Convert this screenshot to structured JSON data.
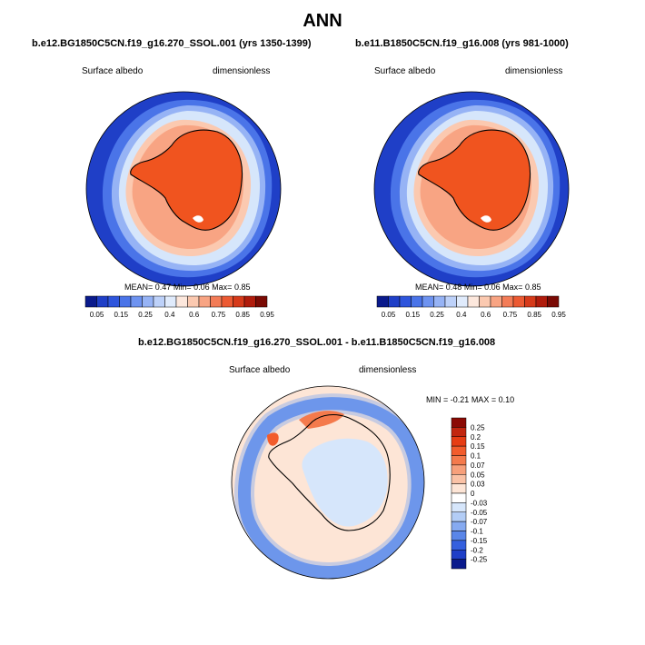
{
  "figure_title": "ANN",
  "colors": {
    "ocean_dark": "#1f3fc7",
    "ice_orange": "#f0541f",
    "coastline": "#000000"
  },
  "chart_data": [
    {
      "type": "heatmap",
      "projection": "south-polar stereographic",
      "title": "b.e12.BG1850C5CN.f19_g16.270_SSOL.001 (yrs 1350-1399)",
      "variable": "Surface albedo",
      "units": "dimensionless",
      "stats": {
        "mean_label": "MEAN=",
        "mean": "0.47",
        "min_label": "Min=",
        "min": "0.06",
        "max_label": "Max=",
        "max": "0.85"
      },
      "colorbar": {
        "orientation": "horizontal",
        "levels": [
          "0.05",
          "0.15",
          "0.25",
          "0.4",
          "0.6",
          "0.75",
          "0.85",
          "0.95"
        ],
        "colors": [
          "#0a1a8c",
          "#1f3fc7",
          "#2e55dc",
          "#4a74e8",
          "#6e93f0",
          "#96b3f5",
          "#bdd1f9",
          "#e0ebfc",
          "#fde8dd",
          "#fbc9b0",
          "#f8a483",
          "#f37c57",
          "#ec5a33",
          "#d63a1a",
          "#b01c0c",
          "#7a0a04"
        ]
      }
    },
    {
      "type": "heatmap",
      "projection": "south-polar stereographic",
      "title": "b.e11.B1850C5CN.f19_g16.008 (yrs 981-1000)",
      "variable": "Surface albedo",
      "units": "dimensionless",
      "stats": {
        "mean_label": "MEAN=",
        "mean": "0.48",
        "min_label": "Min=",
        "min": "0.06",
        "max_label": "Max=",
        "max": "0.85"
      },
      "colorbar": {
        "orientation": "horizontal",
        "levels": [
          "0.05",
          "0.15",
          "0.25",
          "0.4",
          "0.6",
          "0.75",
          "0.85",
          "0.95"
        ],
        "colors": [
          "#0a1a8c",
          "#1f3fc7",
          "#2e55dc",
          "#4a74e8",
          "#6e93f0",
          "#96b3f5",
          "#bdd1f9",
          "#e0ebfc",
          "#fde8dd",
          "#fbc9b0",
          "#f8a483",
          "#f37c57",
          "#ec5a33",
          "#d63a1a",
          "#b01c0c",
          "#7a0a04"
        ]
      }
    },
    {
      "type": "heatmap",
      "projection": "south-polar stereographic",
      "title": "b.e12.BG1850C5CN.f19_g16.270_SSOL.001 - b.e11.B1850C5CN.f19_g16.008",
      "variable": "Surface albedo",
      "units": "dimensionless",
      "stats": {
        "min_label": "MIN =",
        "min": "-0.21",
        "max_label": "MAX =",
        "max": "0.10"
      },
      "colorbar": {
        "orientation": "vertical",
        "levels": [
          "0.25",
          "0.2",
          "0.15",
          "0.1",
          "0.07",
          "0.05",
          "0.03",
          "0",
          "-0.03",
          "-0.05",
          "-0.07",
          "-0.1",
          "-0.15",
          "-0.2",
          "-0.25"
        ],
        "colors": [
          "#8b0a04",
          "#c2260f",
          "#e63d14",
          "#f25c2c",
          "#f47a4c",
          "#f7a07b",
          "#fac2a6",
          "#fde5d6",
          "#ffffff",
          "#d6e6fb",
          "#b3cdf6",
          "#86aaf0",
          "#5a86e8",
          "#3560de",
          "#1f3fc7",
          "#0a1a8c"
        ]
      }
    }
  ]
}
